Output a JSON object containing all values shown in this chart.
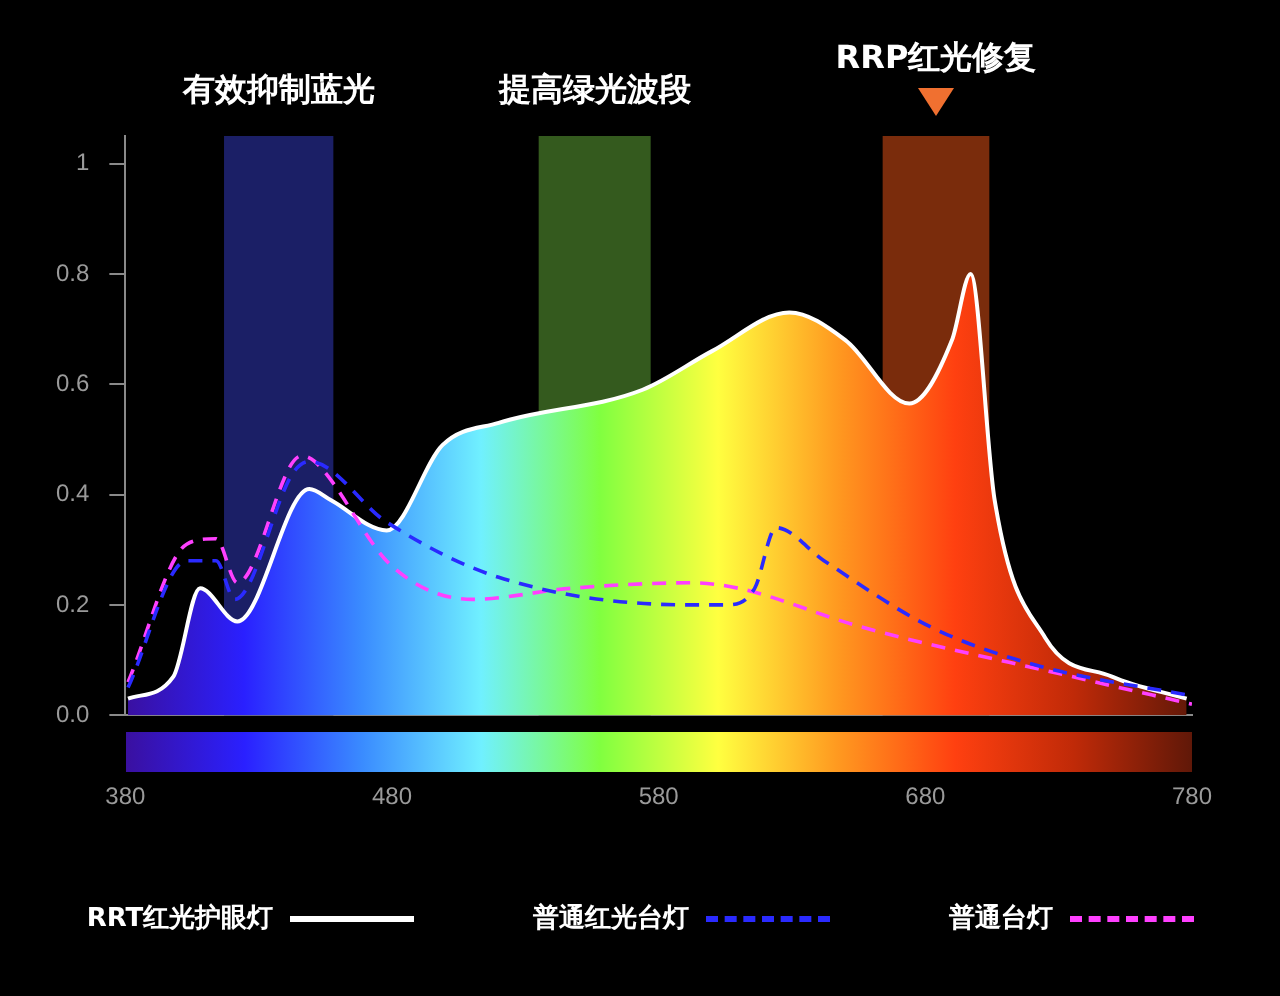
{
  "chart_data": {
    "type": "line",
    "xlim": [
      380,
      780
    ],
    "xticks": [
      380,
      480,
      580,
      680,
      780
    ],
    "ylim": [
      0,
      1.05
    ],
    "yticks": [
      {
        "value": 0,
        "label": "0.0"
      },
      0.2,
      0.4,
      0.6,
      0.8,
      1
    ],
    "marker": "none",
    "legend": "bottom",
    "bands": [
      {
        "axis": "x",
        "from": 417,
        "to": 458,
        "label": "有效抑制蓝光",
        "color": "#1b1f66"
      },
      {
        "axis": "x",
        "from": 535,
        "to": 577,
        "label": "提高绿光波段",
        "color": "#345a1e"
      },
      {
        "axis": "x",
        "from": 664,
        "to": 704,
        "label": "RRP红光修复",
        "color": "#7a2c0c"
      }
    ],
    "series": [
      {
        "name": "RRT红光护眼灯",
        "type": "area",
        "color": "#ffffff",
        "line_style": "solid",
        "x": [
          381,
          398,
          408,
          422,
          449,
          457,
          478,
          499,
          520,
          574,
          600,
          629,
          650,
          674,
          690,
          697,
          706,
          725,
          750,
          778
        ],
        "values": [
          0.03,
          0.07,
          0.23,
          0.17,
          0.41,
          0.39,
          0.335,
          0.49,
          0.53,
          0.59,
          0.66,
          0.73,
          0.68,
          0.565,
          0.68,
          0.8,
          0.39,
          0.14,
          0.07,
          0.03
        ]
      },
      {
        "name": "普通红光台灯",
        "color": "#2a2aff",
        "line_style": "dashed",
        "x": [
          381,
          403,
          414,
          421,
          443,
          449,
          478,
          520,
          592,
          605,
          616,
          624,
          642,
          682,
          722,
          780
        ],
        "values": [
          0.05,
          0.28,
          0.28,
          0.21,
          0.44,
          0.46,
          0.35,
          0.25,
          0.2,
          0.2,
          0.23,
          0.34,
          0.28,
          0.16,
          0.09,
          0.035
        ]
      },
      {
        "name": "普通台灯",
        "color": "#ff40ff",
        "line_style": "dashed",
        "x": [
          381,
          403,
          414,
          422,
          446,
          451,
          480,
          510,
          547,
          592,
          610,
          656,
          735,
          780
        ],
        "values": [
          0.06,
          0.31,
          0.32,
          0.24,
          0.47,
          0.46,
          0.27,
          0.21,
          0.23,
          0.24,
          0.23,
          0.16,
          0.07,
          0.02
        ]
      }
    ]
  }
}
